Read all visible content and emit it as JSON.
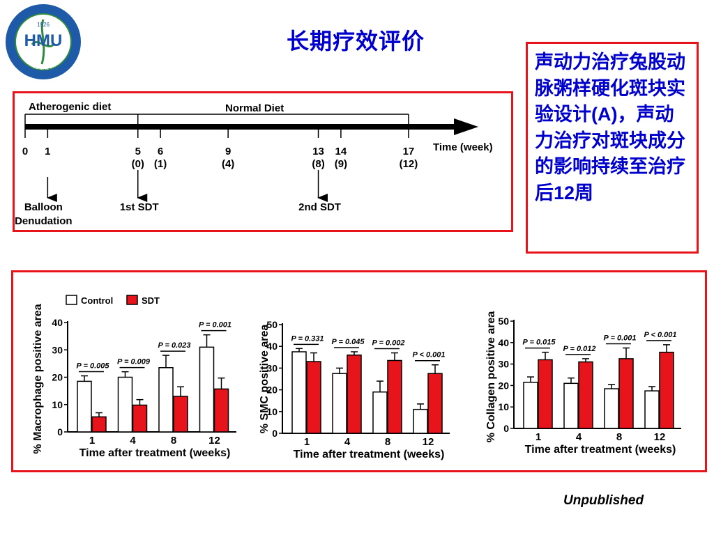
{
  "title": "长期疗效评价",
  "logo": {
    "text": "HMU",
    "year": "1926",
    "ring_text": "HARBIN MEDICAL UNIVERSITY"
  },
  "side_note": "声动力治疗兔股动脉粥样硬化斑块实验设计(A)，声动力治疗对斑块成分的影响持续至治疗后12周",
  "footer_note": "Unpublished",
  "timeline": {
    "phase1_label": "Atherogenic diet",
    "phase2_label": "Normal Diet",
    "axis_label": "Time (week)",
    "ticks": [
      {
        "week": "0",
        "sub": ""
      },
      {
        "week": "1",
        "sub": ""
      },
      {
        "week": "5",
        "sub": "(0)"
      },
      {
        "week": "6",
        "sub": "(1)"
      },
      {
        "week": "9",
        "sub": "(4)"
      },
      {
        "week": "13",
        "sub": "(8)"
      },
      {
        "week": "14",
        "sub": "(9)"
      },
      {
        "week": "17",
        "sub": "(12)"
      }
    ],
    "events": [
      {
        "week": 1,
        "label": "Balloon\nDenudation"
      },
      {
        "week": 5,
        "label": "1st SDT"
      },
      {
        "week": 13,
        "label": "2nd SDT"
      }
    ]
  },
  "colors": {
    "accent_red": "#e8141c",
    "title_blue": "#0000cc",
    "control_fill": "#ffffff",
    "sdt_fill": "#e8141c"
  },
  "chart_data": [
    {
      "type": "bar",
      "legend": [
        "Control",
        "SDT"
      ],
      "categories": [
        "1",
        "4",
        "8",
        "12"
      ],
      "xlabel": "Time after treatment (weeks)",
      "ylabel": "% Macrophage positive area",
      "ylim": [
        0,
        40
      ],
      "yticks": [
        0,
        10,
        20,
        30,
        40
      ],
      "series": [
        {
          "name": "Control",
          "values": [
            18.5,
            20,
            23.5,
            31
          ],
          "errors": [
            2,
            2,
            4.5,
            4.5
          ]
        },
        {
          "name": "SDT",
          "values": [
            5.5,
            9.8,
            13,
            15.7
          ],
          "errors": [
            1.5,
            2,
            3.5,
            4
          ]
        }
      ],
      "pvalues": [
        "P = 0.005",
        "P = 0.009",
        "P = 0.023",
        "P = 0.001"
      ]
    },
    {
      "type": "bar",
      "categories": [
        "1",
        "4",
        "8",
        "12"
      ],
      "xlabel": "Time after treatment (weeks)",
      "ylabel": "% SMC positive area",
      "ylim": [
        0,
        50
      ],
      "yticks": [
        0,
        10,
        20,
        30,
        40,
        50
      ],
      "series": [
        {
          "name": "Control",
          "values": [
            37.5,
            27.5,
            19,
            11
          ],
          "errors": [
            1.5,
            2.5,
            5,
            2.5
          ]
        },
        {
          "name": "SDT",
          "values": [
            33,
            36,
            33.5,
            27.5
          ],
          "errors": [
            4,
            1.5,
            3.5,
            4
          ]
        }
      ],
      "pvalues": [
        "P = 0.331",
        "P = 0.045",
        "P = 0.002",
        "P < 0.001"
      ]
    },
    {
      "type": "bar",
      "categories": [
        "1",
        "4",
        "8",
        "12"
      ],
      "xlabel": "Time after treatment (weeks)",
      "ylabel": "% Collagen positive area",
      "ylim": [
        0,
        50
      ],
      "yticks": [
        0,
        10,
        20,
        30,
        40,
        50
      ],
      "series": [
        {
          "name": "Control",
          "values": [
            21.5,
            21,
            18.5,
            17.5
          ],
          "errors": [
            2.5,
            2.5,
            2,
            2
          ]
        },
        {
          "name": "SDT",
          "values": [
            32,
            31,
            32.5,
            35.5
          ],
          "errors": [
            3.5,
            1.5,
            5,
            3.5
          ]
        }
      ],
      "pvalues": [
        "P = 0.015",
        "P = 0.012",
        "P = 0.001",
        "P < 0.001"
      ]
    }
  ]
}
